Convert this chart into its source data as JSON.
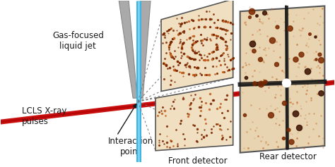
{
  "bg_color": "#ffffff",
  "fig_width": 4.74,
  "fig_height": 2.37,
  "labels": {
    "gas_focused": "Gas-focused\nliquid jet",
    "lcls": "LCLS X-ray\npulses",
    "interaction": "Interaction\npoint",
    "front_detector": "Front detector",
    "rear_detector": "Rear detector"
  },
  "jet_color_blue": "#3ab5e0",
  "jet_color_gray": "#aaaaaa",
  "beam_color": "#cc1111",
  "detector_bg": "#f0dfc0",
  "detector_bg2": "#e8d4b0",
  "detector_border": "#555555",
  "diffraction_color": "#7a2800",
  "diffraction_color2": "#c06020",
  "text_color": "#1a1a1a",
  "dashed_color": "#777777"
}
